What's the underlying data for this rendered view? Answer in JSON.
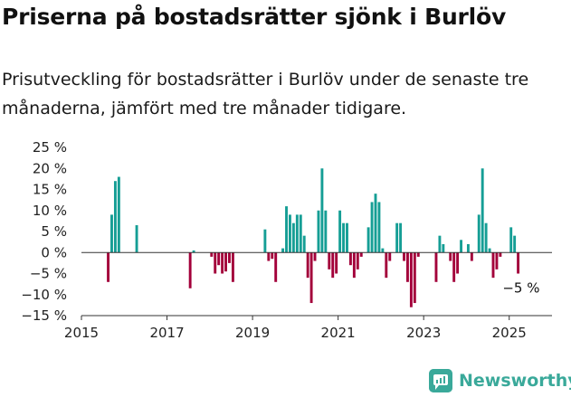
{
  "header": {
    "title": "Priserna på bostadsrätter sjönk i Burlöv",
    "subtitle": "Prisutveckling för bostadsrätter i Burlöv under de senaste tre månaderna, jämfört med tre månader tidigare."
  },
  "brand": {
    "name": "Newsworthy",
    "icon": "newsworthy-logo-icon",
    "color": "#3aa99a"
  },
  "colors": {
    "positive": "#159e95",
    "negative": "#a3003a",
    "axis": "#333333"
  },
  "chart_data": {
    "type": "bar",
    "ylim": [
      -15,
      25
    ],
    "yticks": [
      -15,
      -10,
      -5,
      0,
      5,
      10,
      15,
      20,
      25
    ],
    "ytick_labels": [
      "−15 %",
      "−10 %",
      "−5 %",
      "0 %",
      "5 %",
      "10 %",
      "15 %",
      "20 %",
      "25 %"
    ],
    "xlim": [
      "2015-01",
      "2025-12"
    ],
    "xticks": [
      "2015",
      "2017",
      "2019",
      "2021",
      "2023",
      "2025"
    ],
    "annotation": {
      "text": "−5 %",
      "x": "2025-04",
      "y": -5
    },
    "x": [
      "2015-08",
      "2015-09",
      "2015-10",
      "2015-11",
      "2016-04",
      "2017-07",
      "2017-08",
      "2018-01",
      "2018-02",
      "2018-03",
      "2018-04",
      "2018-05",
      "2018-06",
      "2018-07",
      "2019-04",
      "2019-05",
      "2019-06",
      "2019-07",
      "2019-09",
      "2019-10",
      "2019-11",
      "2019-12",
      "2020-01",
      "2020-02",
      "2020-03",
      "2020-04",
      "2020-05",
      "2020-06",
      "2020-07",
      "2020-08",
      "2020-09",
      "2020-10",
      "2020-11",
      "2020-12",
      "2021-01",
      "2021-02",
      "2021-03",
      "2021-04",
      "2021-05",
      "2021-06",
      "2021-07",
      "2021-09",
      "2021-10",
      "2021-11",
      "2021-12",
      "2022-01",
      "2022-02",
      "2022-03",
      "2022-05",
      "2022-06",
      "2022-07",
      "2022-08",
      "2022-09",
      "2022-10",
      "2022-11",
      "2023-04",
      "2023-05",
      "2023-06",
      "2023-08",
      "2023-09",
      "2023-10",
      "2023-11",
      "2024-01",
      "2024-02",
      "2024-04",
      "2024-05",
      "2024-06",
      "2024-07",
      "2024-08",
      "2024-09",
      "2024-10",
      "2025-01",
      "2025-02",
      "2025-03"
    ],
    "values": [
      -7,
      9,
      17,
      18,
      6.5,
      -8.5,
      0.5,
      -1,
      -5,
      -3,
      -5,
      -4.5,
      -2.5,
      -7,
      5.5,
      -2,
      -1.5,
      -7,
      1,
      11,
      9,
      7,
      9,
      9,
      4,
      -6,
      -12,
      -2,
      10,
      20,
      10,
      -4,
      -6,
      -5,
      10,
      7,
      7,
      -3,
      -6,
      -4,
      -1,
      6,
      12,
      14,
      12,
      1,
      -6,
      -2,
      7,
      7,
      -2,
      -7,
      -13,
      -12,
      -1,
      -7,
      4,
      2,
      -2,
      -7,
      -5,
      3,
      2,
      -2,
      9,
      20,
      7,
      1,
      -6,
      -4,
      -1,
      6,
      4,
      -5
    ]
  }
}
